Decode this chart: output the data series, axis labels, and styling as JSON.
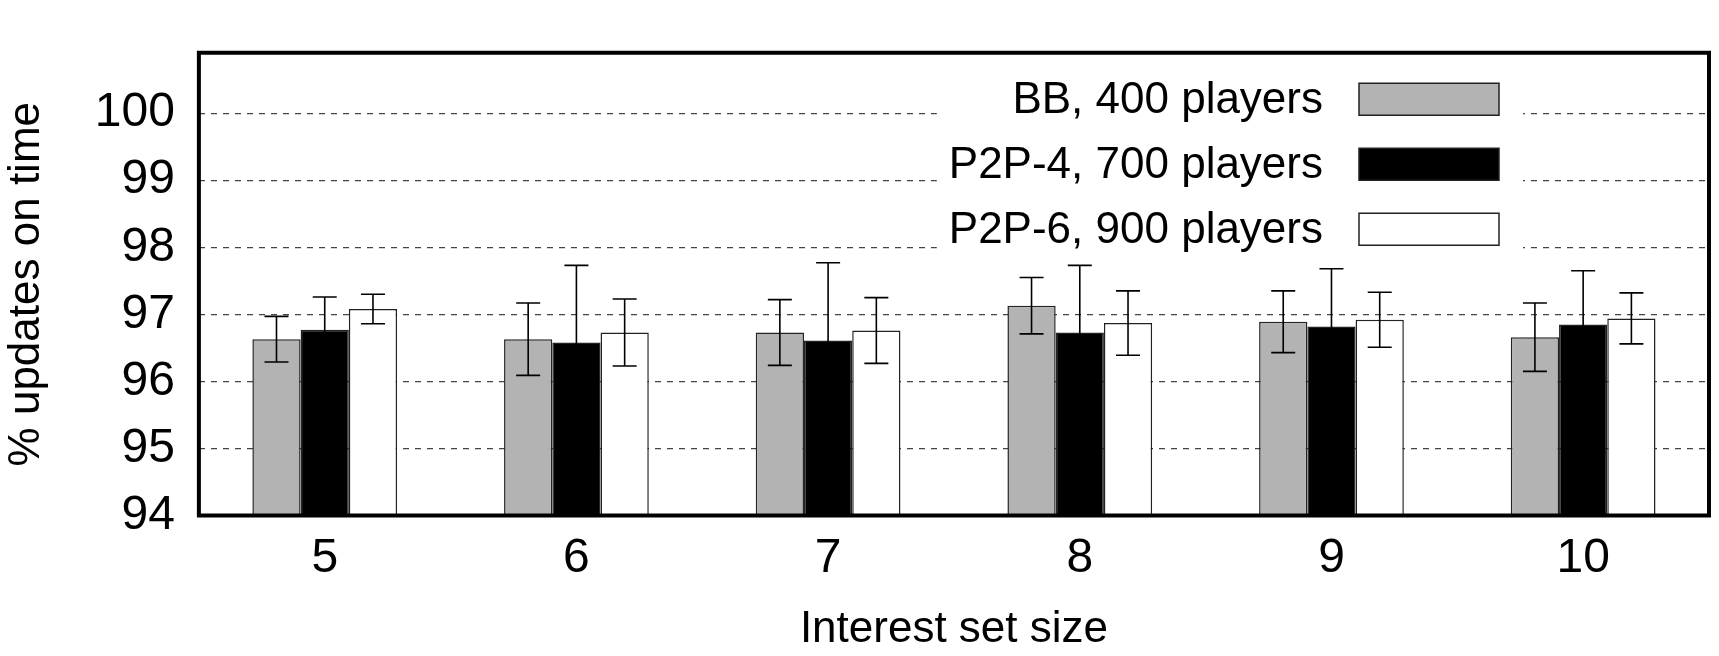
{
  "chart_data": {
    "type": "bar",
    "xlabel": "Interest set size",
    "ylabel": "% updates on time",
    "categories": [
      "5",
      "6",
      "7",
      "8",
      "9",
      "10"
    ],
    "series": [
      {
        "name": "BB, 400 players",
        "color": "#b3b3b3",
        "values": [
          96.63,
          96.63,
          96.73,
          97.13,
          96.89,
          96.66
        ],
        "errors": [
          0.34,
          0.54,
          0.49,
          0.42,
          0.46,
          0.51
        ]
      },
      {
        "name": "P2P-4, 700 players",
        "color": "#000000",
        "values": [
          96.77,
          96.58,
          96.61,
          96.73,
          96.82,
          96.85
        ],
        "errors": [
          0.49,
          1.15,
          1.16,
          1.0,
          0.86,
          0.8
        ]
      },
      {
        "name": "P2P-6, 900 players",
        "color": "#ffffff",
        "values": [
          97.08,
          96.73,
          96.76,
          96.87,
          96.92,
          96.94
        ],
        "errors": [
          0.22,
          0.5,
          0.49,
          0.48,
          0.41,
          0.38
        ]
      }
    ],
    "ylim": [
      94,
      100.9
    ],
    "yticks": [
      94,
      95,
      96,
      97,
      98,
      99,
      100
    ],
    "grid": "y",
    "legend": "top right"
  }
}
